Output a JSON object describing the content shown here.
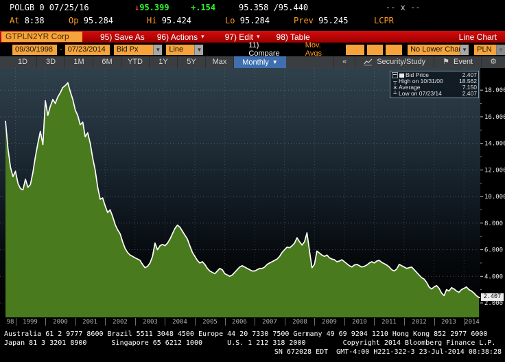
{
  "colors": {
    "up_green": "#2ef52e",
    "label_orange": "#ff9d20",
    "menu_red": "#c00000",
    "field_orange": "#f5a33a",
    "selected_blue": "#3f6fae",
    "area_green": "#4a7a1e",
    "line_white": "#ffffff"
  },
  "quote": {
    "security": "POLGB 0 07/25/16",
    "direction_arrow": "↓",
    "last_price": "95.399",
    "change": "+.154",
    "bid_ask": "95.358 /95.440",
    "market_status": "-- x --",
    "at_label": "At",
    "at_time": "8:38",
    "open_label": "Op",
    "open": "95.284",
    "high_label": "Hi",
    "high": "95.424",
    "low_label": "Lo",
    "low": "95.284",
    "prev_label": "Prev",
    "prev": "95.245",
    "page_code": "LCPR"
  },
  "menu_bar": {
    "ticker_field": "GTPLN2YR Corp",
    "items": [
      {
        "label": "95) Save As",
        "caret": false
      },
      {
        "label": "96) Actions",
        "caret": true
      },
      {
        "label": "97) Edit",
        "caret": true
      },
      {
        "label": "98) Table",
        "caret": false
      }
    ],
    "chart_type_label": "Line Chart"
  },
  "toolbar": {
    "date_from": "09/30/1998",
    "date_separator": "-",
    "date_to": "07/23/2014",
    "price_field": "Bid Px",
    "style_field": "Line",
    "compare_label": "11) Compare",
    "mov_avgs_label": "Mov. Avgs",
    "lower_chart_field": "No Lower Chart",
    "currency_field": "PLN"
  },
  "period_tabs": {
    "ranges": [
      "1D",
      "3D",
      "1M",
      "6M",
      "YTD",
      "1Y",
      "5Y",
      "Max"
    ],
    "frequency_selected": "Monthly"
  },
  "right_tools": {
    "collapse": "«",
    "security_study": "Security/Study",
    "event": "Event"
  },
  "legend": {
    "rows": [
      {
        "icon": "bid-swatch",
        "label": "Bid Price",
        "value": "2.407"
      },
      {
        "icon": "high-marker",
        "label": "High on 10/31/00",
        "value": "18.562"
      },
      {
        "icon": "average-marker",
        "label": "Average",
        "value": "7.150"
      },
      {
        "icon": "low-marker",
        "label": "Low on 07/23/14",
        "value": "2.407"
      }
    ]
  },
  "chart_data": {
    "type": "area",
    "series_name": "Bid Price",
    "frequency": "Monthly",
    "start": "1998-09",
    "end": "2014-07",
    "values": [
      15.7,
      13.6,
      12.2,
      11.5,
      11.9,
      11.0,
      10.6,
      10.5,
      11.3,
      10.7,
      10.9,
      11.8,
      13.0,
      14.0,
      14.9,
      13.9,
      17.2,
      16.1,
      16.8,
      17.3,
      17.0,
      17.5,
      17.8,
      18.2,
      18.35,
      18.562,
      17.9,
      17.3,
      16.5,
      16.1,
      15.4,
      15.6,
      14.5,
      14.8,
      14.0,
      12.9,
      12.0,
      10.7,
      9.8,
      9.9,
      9.3,
      8.8,
      9.0,
      8.5,
      7.9,
      7.5,
      7.2,
      6.6,
      6.1,
      5.8,
      5.6,
      5.5,
      5.4,
      5.3,
      5.2,
      4.9,
      4.65,
      4.75,
      5.0,
      5.5,
      6.5,
      6.0,
      6.3,
      6.4,
      6.3,
      6.5,
      6.8,
      7.2,
      7.6,
      7.85,
      7.7,
      7.4,
      7.1,
      6.8,
      6.3,
      5.8,
      5.5,
      5.2,
      5.0,
      5.1,
      4.9,
      4.6,
      4.4,
      4.3,
      4.2,
      4.4,
      4.6,
      4.5,
      4.2,
      4.1,
      4.0,
      4.1,
      4.3,
      4.5,
      4.7,
      4.8,
      4.7,
      4.6,
      4.5,
      4.4,
      4.4,
      4.5,
      4.6,
      4.6,
      4.7,
      4.9,
      5.0,
      5.1,
      5.2,
      5.3,
      5.5,
      5.8,
      6.0,
      6.2,
      6.15,
      6.3,
      6.5,
      6.9,
      6.6,
      6.35,
      6.6,
      7.27,
      5.9,
      4.65,
      4.9,
      5.9,
      5.75,
      5.6,
      5.5,
      5.6,
      5.4,
      5.3,
      5.25,
      5.1,
      5.15,
      5.25,
      5.1,
      4.95,
      4.8,
      4.7,
      4.85,
      4.9,
      4.8,
      4.7,
      4.75,
      4.85,
      5.0,
      5.1,
      5.0,
      5.15,
      5.2,
      5.05,
      4.95,
      4.85,
      4.7,
      4.5,
      4.4,
      4.55,
      4.9,
      4.8,
      4.7,
      4.6,
      4.65,
      4.7,
      4.5,
      4.3,
      4.1,
      3.9,
      3.8,
      3.55,
      3.2,
      3.05,
      3.2,
      3.3,
      3.1,
      2.75,
      2.55,
      3.0,
      2.9,
      3.15,
      3.05,
      2.9,
      2.8,
      3.0,
      3.1,
      3.2,
      3.0,
      2.9,
      2.75,
      2.55,
      2.407
    ],
    "high_value": 18.562,
    "average_value": 7.15,
    "low_value": 2.407,
    "last_value_label": "2.407",
    "ytick_values": [
      2,
      4,
      6,
      8,
      10,
      12,
      14,
      16,
      18
    ],
    "ytick_labels": [
      "2.000",
      "4.000",
      "6.000",
      "8.000",
      "10.000",
      "12.000",
      "14.000",
      "16.000",
      "18.000"
    ],
    "year_labels": [
      "98",
      "1999",
      "2000",
      "2001",
      "2002",
      "2003",
      "2004",
      "2005",
      "2006",
      "2007",
      "2008",
      "2009",
      "2010",
      "2011",
      "2012",
      "2013",
      "2014"
    ]
  },
  "footer": {
    "lines": [
      "Australia 61 2 9777 8600 Brazil 5511 3048 4500 Europe 44 20 7330 7500 Germany 49 69 9204 1210 Hong Kong 852 2977 6000",
      "Japan 81 3 3201 8900      Singapore 65 6212 1000      U.S. 1 212 318 2000         Copyright 2014 Bloomberg Finance L.P.",
      "SN 672028 EDT  GMT-4:00 H221-322-3 23-Jul-2014 08:38:28"
    ]
  }
}
